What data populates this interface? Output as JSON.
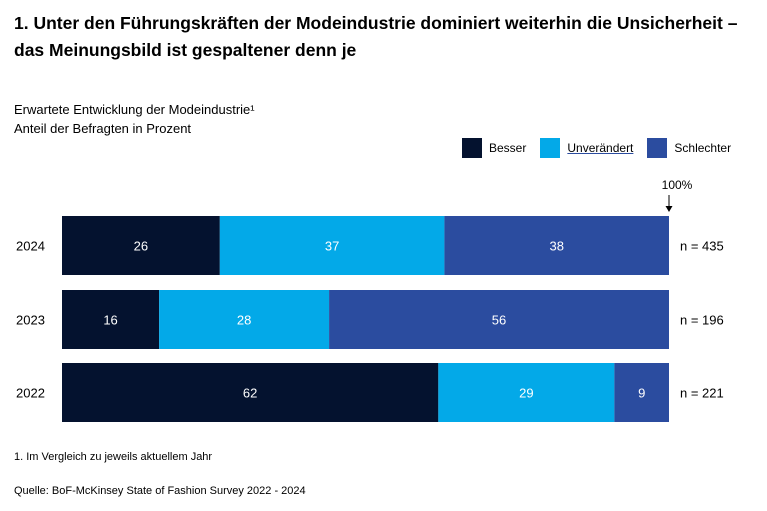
{
  "title": "1. Unter den Führungskräften der Modeindustrie dominiert weiterhin die Unsicherheit – das Meinungsbild ist gespaltener denn je",
  "subtitle_line1": "Erwartete Entwicklung der Modeindustrie¹",
  "subtitle_line2": "Anteil der Befragten in Prozent",
  "legend": [
    {
      "label": "Besser",
      "color": "#04122f"
    },
    {
      "label": "Unverändert",
      "color": "#03a9e8"
    },
    {
      "label": "Schlechter",
      "color": "#2b4c9f"
    }
  ],
  "footnote": "1. Im Vergleich zu jeweils aktuellem Jahr",
  "source": "Quelle: BoF-McKinsey State of Fashion Survey 2022 - 2024",
  "chart_data": {
    "type": "bar",
    "orientation": "horizontal",
    "stacked": true,
    "categories": [
      "2024",
      "2023",
      "2022"
    ],
    "series": [
      {
        "name": "Besser",
        "color": "#04122f",
        "values": [
          26,
          16,
          62
        ]
      },
      {
        "name": "Unverändert",
        "color": "#03a9e8",
        "values": [
          37,
          28,
          29
        ]
      },
      {
        "name": "Schlechter",
        "color": "#2b4c9f",
        "values": [
          38,
          56,
          9
        ]
      }
    ],
    "sample_sizes": [
      "n = 435",
      "n = 196",
      "n = 221"
    ],
    "total_marker_label": "100%",
    "xlim": [
      0,
      101
    ]
  }
}
